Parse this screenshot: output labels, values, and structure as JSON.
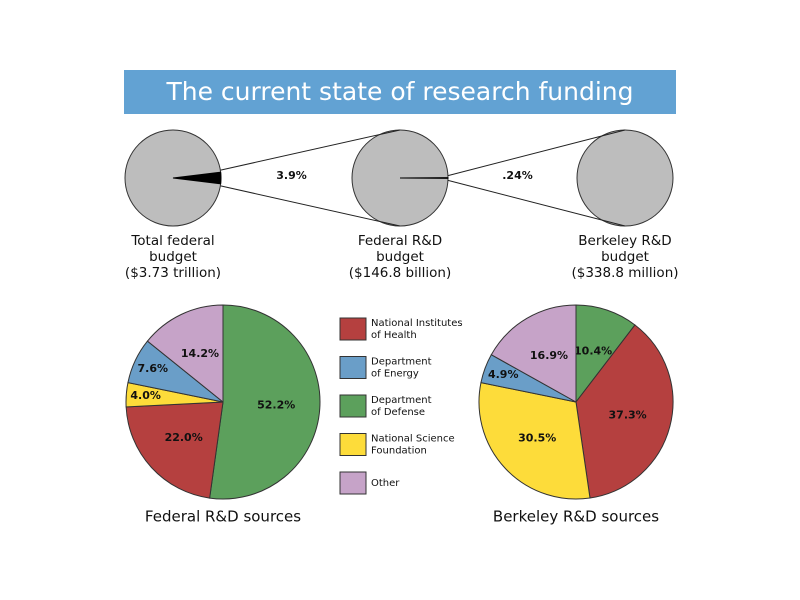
{
  "title": "The current state of research funding",
  "chart_data": [
    {
      "type": "zoom",
      "stages": [
        [
          "Total federal",
          "budget",
          "($3.73 trillion)"
        ],
        [
          "Federal R&D",
          "budget",
          "($146.8 billion)"
        ],
        [
          "Berkeley R&D",
          "budget",
          "($338.8 million)"
        ]
      ],
      "values": [
        3.9,
        0.24
      ],
      "value_labels": [
        "3.9%",
        ".24%"
      ],
      "color": "#bdbdbd"
    },
    {
      "type": "pie",
      "title": "Federal R&D sources",
      "values": [
        22.0,
        7.6,
        52.2,
        4.0,
        14.2
      ],
      "value_labels": [
        "22.0%",
        "7.6%",
        "52.2%",
        "4.0%",
        "14.2%"
      ]
    },
    {
      "type": "pie",
      "title": "Berkeley R&D sources",
      "values": [
        37.3,
        4.9,
        10.4,
        30.5,
        16.9
      ],
      "value_labels": [
        "37.3%",
        "4.9%",
        "10.4%",
        "30.5%",
        "16.9%"
      ]
    }
  ],
  "legend": [
    {
      "lines": [
        "National Institutes",
        "of Health"
      ],
      "color": "#b5403f"
    },
    {
      "lines": [
        "Department",
        "of Energy"
      ],
      "color": "#6a9ec8"
    },
    {
      "lines": [
        "Department",
        "of Defense"
      ],
      "color": "#5ca05c"
    },
    {
      "lines": [
        "National Science",
        "Foundation"
      ],
      "color": "#fddc3a"
    },
    {
      "lines": [
        "Other"
      ],
      "color": "#c6a3c8"
    }
  ]
}
